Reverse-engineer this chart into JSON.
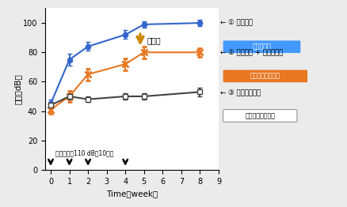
{
  "xlabel": "Time（week）",
  "ylabel": "嚾値（dB）",
  "xlim": [
    -0.3,
    9
  ],
  "ylim": [
    0,
    110
  ],
  "yticks": [
    0,
    20,
    40,
    60,
    80,
    100
  ],
  "xticks": [
    0,
    1,
    2,
    3,
    4,
    5,
    6,
    7,
    8,
    9
  ],
  "bg_color": "#ebebeb",
  "plot_bg": "#ffffff",
  "series1_x": [
    0,
    1,
    2,
    4,
    5,
    8
  ],
  "series1_y": [
    45,
    75,
    84,
    92,
    99,
    100
  ],
  "series1_yerr": [
    3,
    4,
    3,
    3,
    2,
    2
  ],
  "series1_color": "#3366cc",
  "series2_x": [
    0,
    1,
    2,
    4,
    5,
    8
  ],
  "series2_y": [
    41,
    50,
    65,
    72,
    80,
    80
  ],
  "series2_yerr": [
    3,
    4,
    4,
    4,
    4,
    3
  ],
  "series2_color": "#e87722",
  "series3_x": [
    0,
    1,
    2,
    4,
    5,
    8
  ],
  "series3_y": [
    44,
    50,
    48,
    50,
    50,
    53
  ],
  "series3_yerr": [
    2,
    2,
    2,
    2,
    2,
    3
  ],
  "series3_color": "#444444",
  "arrow_weeks": [
    0,
    1,
    2,
    4
  ],
  "noise_label": "騒音負荷（110 dB，10分）",
  "hachi_label": "蜂の子",
  "label1_main": "① 騒音負荷",
  "label1_badge": "騒音性難聴",
  "label1_badge_color": "#4499ff",
  "label2_main": "② 騒音負荷 + 蜂の子摄取",
  "label2_badge": "騒音性難聴が軽減",
  "label2_badge_color": "#e87722",
  "label3_main": "③ 騒音負荷なし",
  "label3_badge": "耳が良い（通常）"
}
